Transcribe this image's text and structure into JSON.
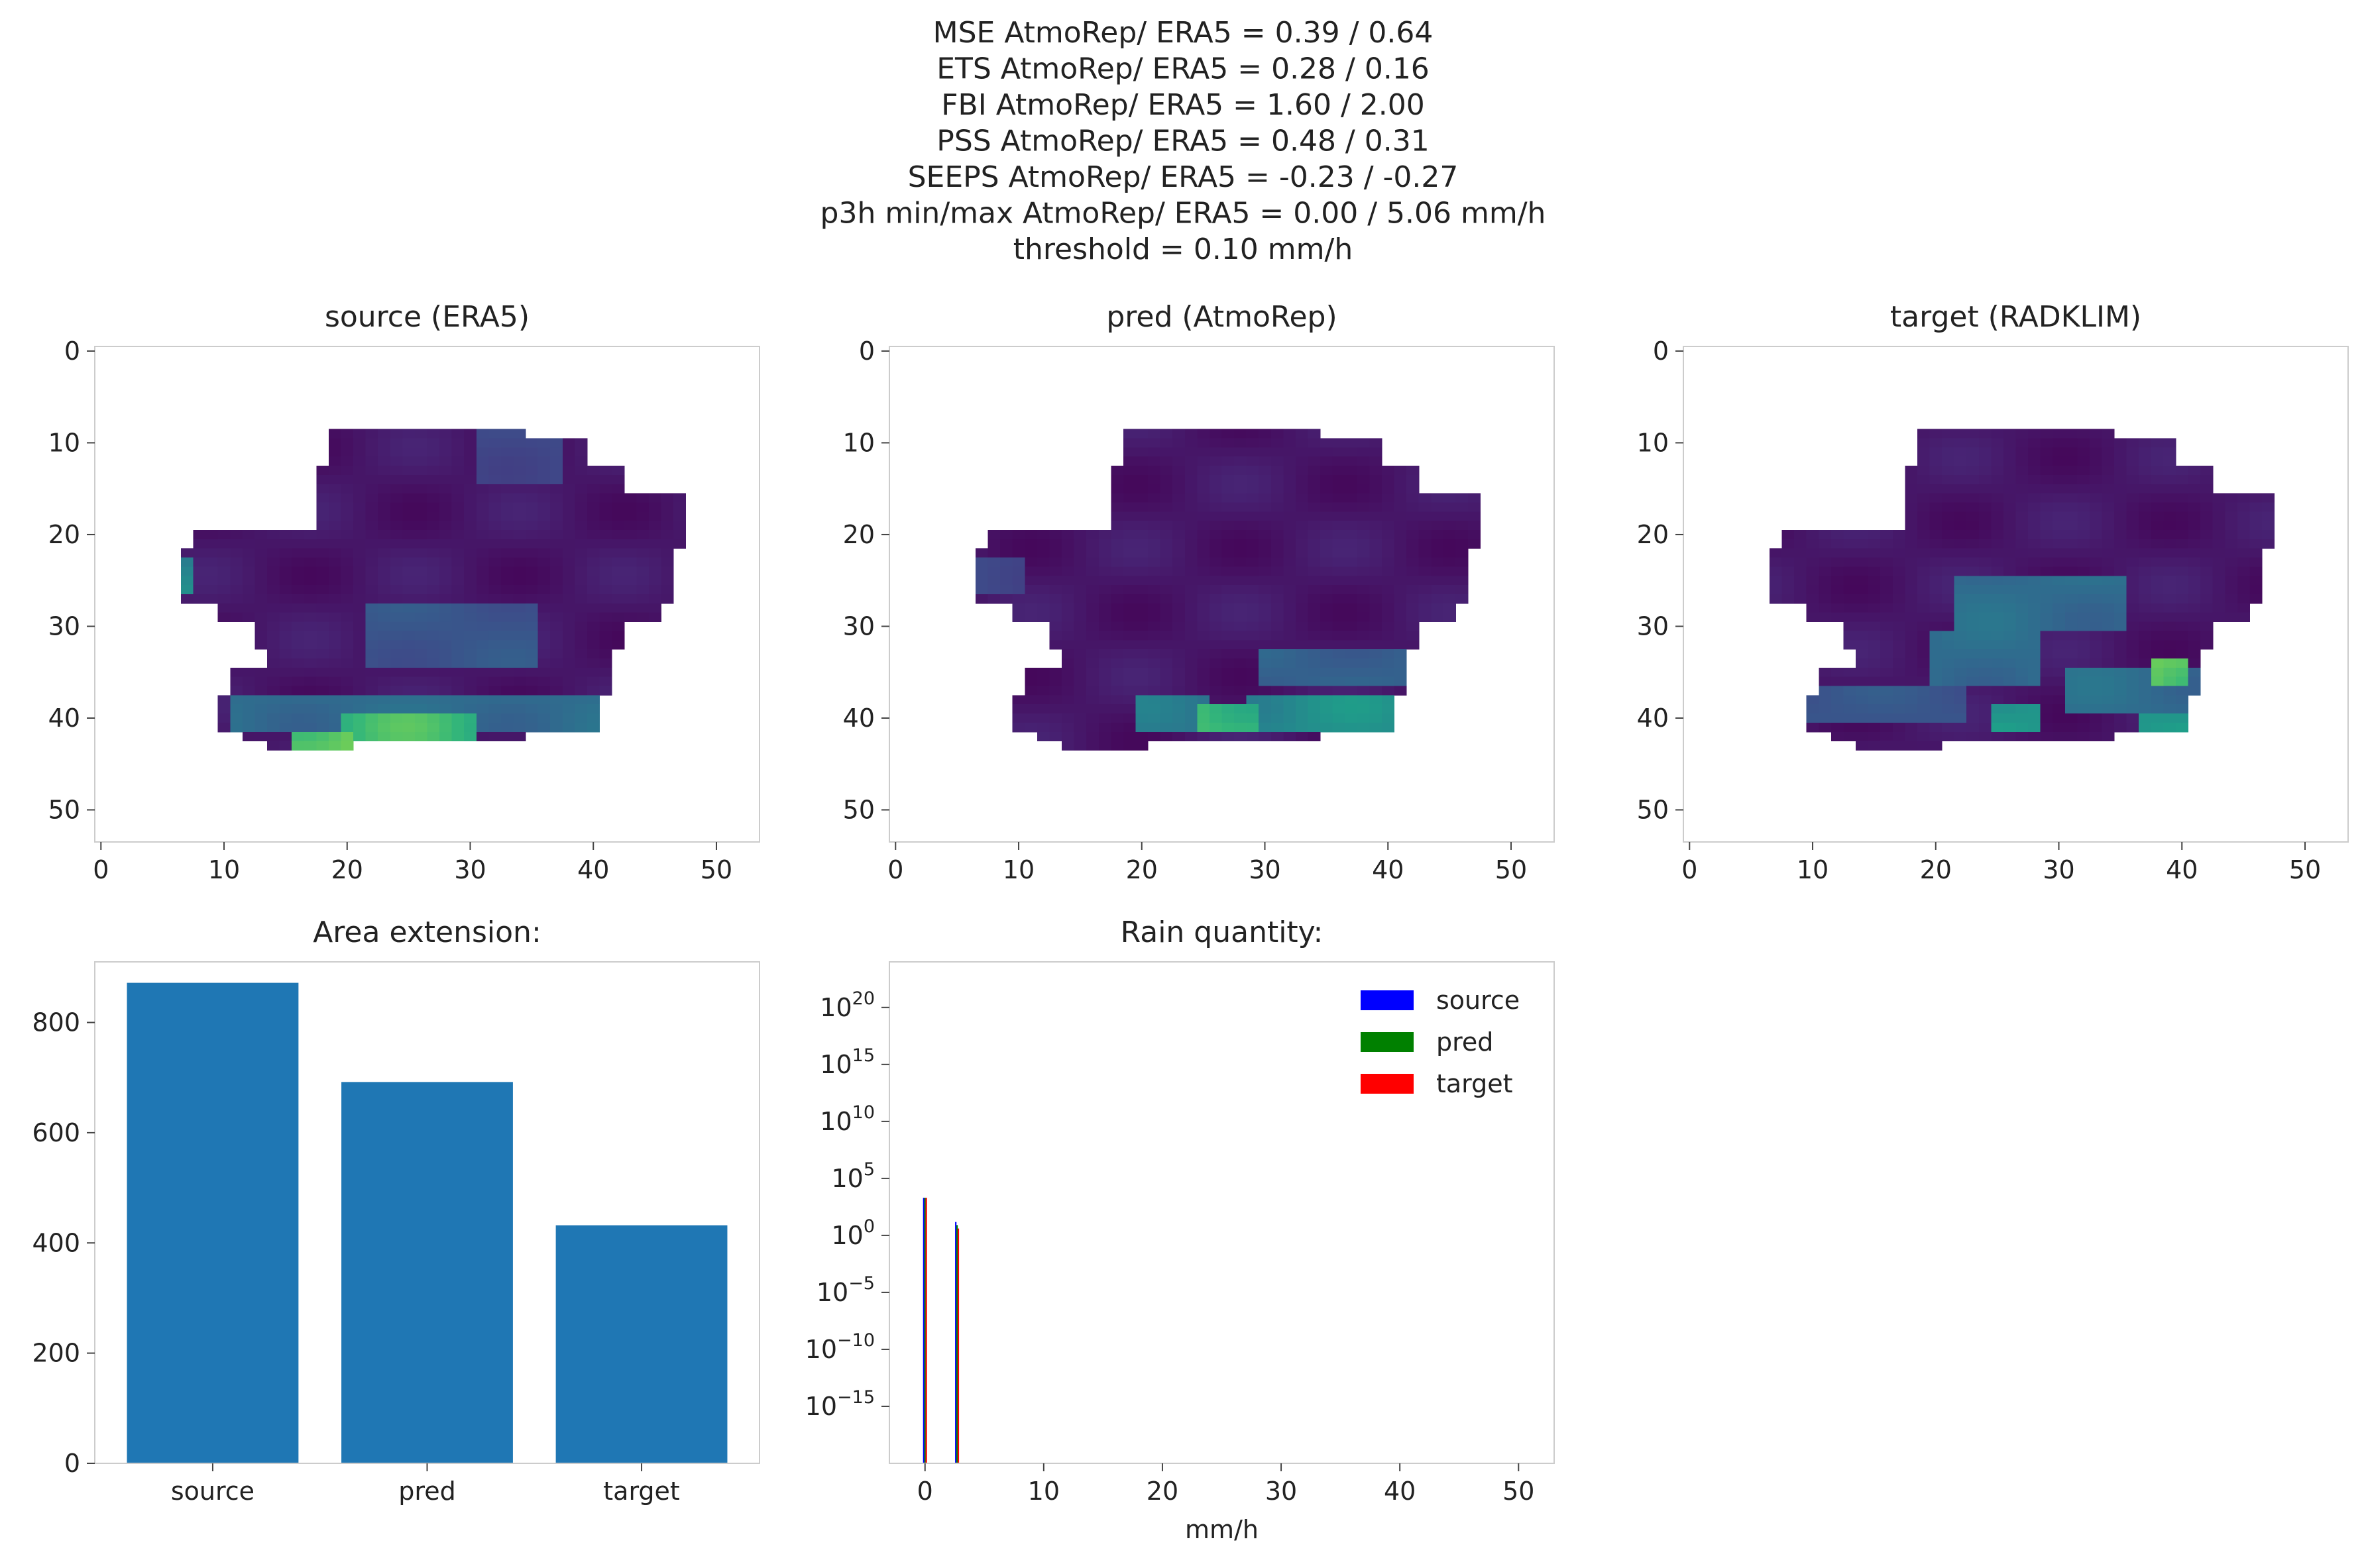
{
  "suptitle": [
    "MSE AtmoRep/ ERA5 = 0.39 / 0.64",
    "ETS AtmoRep/ ERA5 = 0.28 / 0.16",
    "FBI AtmoRep/ ERA5 = 1.60 / 2.00",
    "PSS AtmoRep/ ERA5 = 0.48 / 0.31",
    "SEEPS AtmoRep/ ERA5 = -0.23 / -0.27",
    "p3h min/max AtmoRep/ ERA5 = 0.00 / 5.06 mm/h",
    "threshold = 0.10 mm/h"
  ],
  "colors": {
    "viridis_low": "#440154",
    "bar": "#1f77b4",
    "source": "#0000ff",
    "pred": "#008000",
    "target": "#ff0000",
    "frame": "#cccccc"
  },
  "chart_data": [
    {
      "type": "heatmap",
      "title": "source (ERA5)",
      "colormap": "viridis",
      "xlim": [
        -0.5,
        53.5
      ],
      "ylim": [
        53.5,
        -0.5
      ],
      "xticks": [
        0,
        10,
        20,
        30,
        40,
        50
      ],
      "yticks": [
        0,
        10,
        20,
        30,
        40,
        50
      ],
      "grid": false,
      "highlights": [
        {
          "x": [
            5,
            7
          ],
          "y": [
            23,
            26
          ],
          "level": 0.5
        },
        {
          "x": [
            16,
            20
          ],
          "y": [
            42,
            44
          ],
          "level": 0.9
        },
        {
          "x": [
            20,
            30
          ],
          "y": [
            40,
            43
          ],
          "level": 0.75
        },
        {
          "x": [
            11,
            40
          ],
          "y": [
            38,
            41
          ],
          "level": 0.4
        },
        {
          "x": [
            22,
            35
          ],
          "y": [
            28,
            34
          ],
          "level": 0.3
        },
        {
          "x": [
            31,
            37
          ],
          "y": [
            8,
            14
          ],
          "level": 0.25
        }
      ]
    },
    {
      "type": "heatmap",
      "title": "pred (AtmoRep)",
      "colormap": "viridis",
      "xlim": [
        -0.5,
        53.5
      ],
      "ylim": [
        53.5,
        -0.5
      ],
      "xticks": [
        0,
        10,
        20,
        30,
        40,
        50
      ],
      "yticks": [
        0,
        10,
        20,
        30,
        40,
        50
      ],
      "grid": false,
      "highlights": [
        {
          "x": [
            25,
            29
          ],
          "y": [
            39,
            41
          ],
          "level": 0.8
        },
        {
          "x": [
            29,
            41
          ],
          "y": [
            38,
            41
          ],
          "level": 0.55
        },
        {
          "x": [
            20,
            25
          ],
          "y": [
            38,
            41
          ],
          "level": 0.45
        },
        {
          "x": [
            30,
            42
          ],
          "y": [
            33,
            36
          ],
          "level": 0.35
        },
        {
          "x": [
            6,
            10
          ],
          "y": [
            23,
            26
          ],
          "level": 0.25
        }
      ]
    },
    {
      "type": "heatmap",
      "title": "target (RADKLIM)",
      "colormap": "viridis",
      "xlim": [
        -0.5,
        53.5
      ],
      "ylim": [
        53.5,
        -0.5
      ],
      "xticks": [
        0,
        10,
        20,
        30,
        40,
        50
      ],
      "yticks": [
        0,
        10,
        20,
        30,
        40,
        50
      ],
      "grid": false,
      "highlights": [
        {
          "x": [
            38,
            40
          ],
          "y": [
            34,
            36
          ],
          "level": 0.9
        },
        {
          "x": [
            25,
            28
          ],
          "y": [
            39,
            41
          ],
          "level": 0.6
        },
        {
          "x": [
            37,
            40
          ],
          "y": [
            40,
            42
          ],
          "level": 0.6
        },
        {
          "x": [
            22,
            35
          ],
          "y": [
            25,
            30
          ],
          "level": 0.4
        },
        {
          "x": [
            20,
            28
          ],
          "y": [
            31,
            36
          ],
          "level": 0.4
        },
        {
          "x": [
            31,
            42
          ],
          "y": [
            35,
            39
          ],
          "level": 0.4
        },
        {
          "x": [
            10,
            22
          ],
          "y": [
            37,
            40
          ],
          "level": 0.3
        }
      ]
    },
    {
      "type": "bar",
      "title": "Area extension:",
      "categories": [
        "source",
        "pred",
        "target"
      ],
      "values": [
        872,
        692,
        432
      ],
      "ylim": [
        0,
        910
      ],
      "yticks": [
        0,
        200,
        400,
        600,
        800
      ],
      "xlabel": "",
      "ylabel": "",
      "grid": false
    },
    {
      "type": "bar",
      "title": "Rain quantity:",
      "yscale": "log",
      "xlabel": "mm/h",
      "ylabel": "",
      "xlim": [
        -3,
        53
      ],
      "ylim": [
        1e-20,
        1e+24
      ],
      "xticks": [
        0,
        10,
        20,
        30,
        40,
        50
      ],
      "yticks": [
        {
          "exp": -15,
          "label_base": "10",
          "label_exp": "−15"
        },
        {
          "exp": -10,
          "label_base": "10",
          "label_exp": "−10"
        },
        {
          "exp": -5,
          "label_base": "10",
          "label_exp": "−5"
        },
        {
          "exp": 0,
          "label_base": "10",
          "label_exp": "0"
        },
        {
          "exp": 5,
          "label_base": "10",
          "label_exp": "5"
        },
        {
          "exp": 10,
          "label_base": "10",
          "label_exp": "10"
        },
        {
          "exp": 15,
          "label_base": "10",
          "label_exp": "15"
        },
        {
          "exp": 20,
          "label_base": "10",
          "label_exp": "20"
        }
      ],
      "legend": "top-right",
      "grid": false,
      "series": [
        {
          "name": "source",
          "x": [
            0,
            2.7
          ],
          "values": [
            2000,
            15
          ]
        },
        {
          "name": "pred",
          "x": [
            0,
            2.7
          ],
          "values": [
            2000,
            8
          ]
        },
        {
          "name": "target",
          "x": [
            0,
            2.7
          ],
          "values": [
            2000,
            4
          ]
        }
      ]
    }
  ]
}
